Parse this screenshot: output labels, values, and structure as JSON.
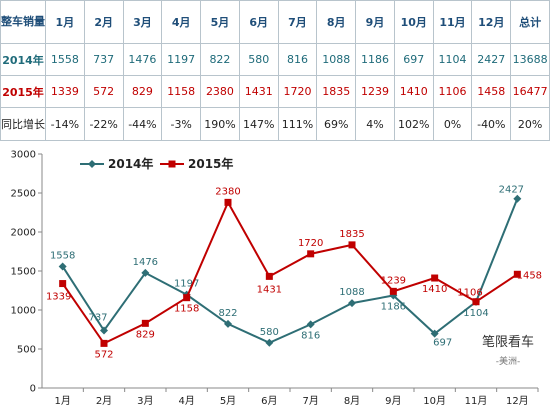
{
  "table": {
    "corner": "整车销量",
    "months": [
      "1月",
      "2月",
      "3月",
      "4月",
      "5月",
      "6月",
      "7月",
      "8月",
      "9月",
      "10月",
      "11月",
      "12月"
    ],
    "total_label": "总计",
    "rows": [
      {
        "label": "2014年",
        "values": [
          "1558",
          "737",
          "1476",
          "1197",
          "822",
          "580",
          "816",
          "1088",
          "1186",
          "697",
          "1104",
          "2427"
        ],
        "total": "13688"
      },
      {
        "label": "2015年",
        "values": [
          "1339",
          "572",
          "829",
          "1158",
          "2380",
          "1431",
          "1720",
          "1835",
          "1239",
          "1410",
          "1106",
          "1458"
        ],
        "total": "16477"
      },
      {
        "label": "同比增长",
        "values": [
          "-14%",
          "-22%",
          "-44%",
          "-3%",
          "190%",
          "147%",
          "111%",
          "69%",
          "4%",
          "102%",
          "0%",
          "-40%"
        ],
        "total": "20%"
      }
    ]
  },
  "chart_data": {
    "type": "line",
    "categories": [
      "1月",
      "2月",
      "3月",
      "4月",
      "5月",
      "6月",
      "7月",
      "8月",
      "9月",
      "10月",
      "11月",
      "12月"
    ],
    "series": [
      {
        "name": "2014年",
        "color": "#2e6e75",
        "marker": "diamond",
        "values": [
          1558,
          737,
          1476,
          1197,
          822,
          580,
          816,
          1088,
          1186,
          697,
          1104,
          2427
        ]
      },
      {
        "name": "2015年",
        "color": "#c00000",
        "marker": "square",
        "values": [
          1339,
          572,
          829,
          1158,
          2380,
          1431,
          1720,
          1835,
          1239,
          1410,
          1106,
          1458
        ]
      }
    ],
    "ylim": [
      0,
      3000
    ],
    "yticks": [
      0,
      500,
      1000,
      1500,
      2000,
      2500,
      3000
    ],
    "legend": "top-left",
    "grid": false
  },
  "watermark": {
    "line1": "笔限看车",
    "line2": "-美洲-"
  }
}
